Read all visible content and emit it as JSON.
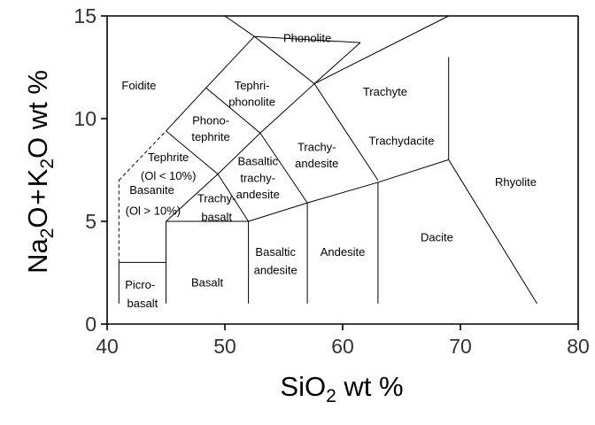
{
  "chart_data": {
    "type": "diagram",
    "xlabel": {
      "main": "SiO",
      "sub": "2",
      "rest": " wt %"
    },
    "ylabel": {
      "p1": "Na",
      "s1": "2",
      "p2": "O",
      "p3": "+",
      "p4": "K",
      "s2": "2",
      "p5": "O wt %"
    },
    "xlim": [
      40,
      80
    ],
    "ylim": [
      0,
      15
    ],
    "xticks": [
      40,
      50,
      60,
      70,
      80
    ],
    "yticks": [
      0,
      5,
      10,
      15
    ],
    "grid": false,
    "boundaries": [
      {
        "id": "basalt-left",
        "points": [
          [
            45,
            1
          ],
          [
            45,
            5
          ]
        ]
      },
      {
        "id": "picrobasalt-top",
        "points": [
          [
            41,
            3
          ],
          [
            45,
            3
          ]
        ]
      },
      {
        "id": "picrobasalt-left",
        "points": [
          [
            41,
            1
          ],
          [
            41,
            3
          ]
        ]
      },
      {
        "id": "basanite-left",
        "points": [
          [
            41,
            3
          ],
          [
            41,
            7
          ]
        ],
        "dashed": true
      },
      {
        "id": "foidite-edge-dashed",
        "points": [
          [
            41,
            7
          ],
          [
            45,
            9.4
          ]
        ],
        "dashed": true
      },
      {
        "id": "basalt-top",
        "points": [
          [
            45,
            5
          ],
          [
            52,
            5
          ]
        ]
      },
      {
        "id": "basalt-right",
        "points": [
          [
            52,
            1
          ],
          [
            52,
            5
          ]
        ]
      },
      {
        "id": "basaltic-andesite-right",
        "points": [
          [
            57,
            1
          ],
          [
            57,
            5.9
          ]
        ]
      },
      {
        "id": "andesite-right",
        "points": [
          [
            63,
            1
          ],
          [
            63,
            6.9
          ]
        ]
      },
      {
        "id": "upper-bound",
        "points": [
          [
            52,
            5
          ],
          [
            57,
            5.9
          ],
          [
            63,
            6.9
          ],
          [
            69,
            8
          ]
        ]
      },
      {
        "id": "rhyolite-left",
        "points": [
          [
            69,
            8
          ],
          [
            69,
            13
          ]
        ]
      },
      {
        "id": "rhyolite-base",
        "points": [
          [
            69,
            8
          ],
          [
            76.5,
            1
          ]
        ]
      },
      {
        "id": "trachybasalt-left",
        "points": [
          [
            45,
            5
          ],
          [
            49.4,
            7.3
          ]
        ]
      },
      {
        "id": "foidite-edge",
        "points": [
          [
            45,
            9.4
          ],
          [
            48.4,
            11.5
          ],
          [
            52.5,
            14
          ],
          [
            57.6,
            11.7
          ],
          [
            63,
            7
          ]
        ]
      },
      {
        "id": "foidite-top",
        "points": [
          [
            52.5,
            14
          ],
          [
            50,
            15.2
          ]
        ]
      },
      {
        "id": "phonolite-left",
        "points": [
          [
            52.5,
            14
          ],
          [
            61.5,
            13.7
          ]
        ]
      },
      {
        "id": "trachyte-tephriphonolite-split",
        "points": [
          [
            57.6,
            11.7
          ],
          [
            61.5,
            13.7
          ]
        ]
      },
      {
        "id": "phonolite-line",
        "points": [
          [
            57.6,
            11.7
          ],
          [
            69,
            15.5
          ]
        ]
      },
      {
        "id": "phono-tephrite-upper",
        "points": [
          [
            48.4,
            11.5
          ],
          [
            53,
            9.3
          ]
        ]
      },
      {
        "id": "tephrite-upper",
        "points": [
          [
            45,
            9.4
          ],
          [
            49.4,
            7.3
          ]
        ]
      },
      {
        "id": "basaltic-trachy-left",
        "points": [
          [
            49.4,
            7.3
          ],
          [
            52,
            5
          ]
        ]
      },
      {
        "id": "basaltic-trachy-right",
        "points": [
          [
            53,
            9.3
          ],
          [
            57,
            5.9
          ]
        ]
      },
      {
        "id": "phono-right",
        "points": [
          [
            49.4,
            7.3
          ],
          [
            53,
            9.3
          ]
        ]
      },
      {
        "id": "tephriphonolite-right",
        "points": [
          [
            53,
            9.3
          ],
          [
            57.6,
            11.7
          ]
        ]
      }
    ],
    "labels": [
      {
        "text": "Phonolite",
        "x": 57.0,
        "y": 13.9
      },
      {
        "text": "Foidite",
        "x": 42.7,
        "y": 11.6
      },
      {
        "text": "Tephri-",
        "x": 52.3,
        "y": 11.6
      },
      {
        "text": "phonolite",
        "x": 52.3,
        "y": 10.8
      },
      {
        "text": "Trachyte",
        "x": 63.6,
        "y": 11.3
      },
      {
        "text": "Phono-",
        "x": 48.8,
        "y": 9.9
      },
      {
        "text": "tephrite",
        "x": 48.8,
        "y": 9.1
      },
      {
        "text": "Trachydacite",
        "x": 65.0,
        "y": 8.9
      },
      {
        "text": "Tephrite",
        "x": 45.2,
        "y": 8.1
      },
      {
        "text": "(Ol < 10%)",
        "x": 45.2,
        "y": 7.2
      },
      {
        "text": "Trachy-",
        "x": 57.8,
        "y": 8.6
      },
      {
        "text": "andesite",
        "x": 57.8,
        "y": 7.8
      },
      {
        "text": "Basaltic",
        "x": 52.8,
        "y": 7.9
      },
      {
        "text": "trachy-",
        "x": 52.8,
        "y": 7.1
      },
      {
        "text": "andesite",
        "x": 52.8,
        "y": 6.3
      },
      {
        "text": "Rhyolite",
        "x": 74.7,
        "y": 6.9
      },
      {
        "text": "Basanite",
        "x": 43.8,
        "y": 6.5
      },
      {
        "text": "Trachy-",
        "x": 49.3,
        "y": 6.1
      },
      {
        "text": "(Ol > 10%)",
        "x": 43.9,
        "y": 5.5
      },
      {
        "text": "basalt",
        "x": 49.3,
        "y": 5.2
      },
      {
        "text": "Dacite",
        "x": 68.0,
        "y": 4.2
      },
      {
        "text": "Andesite",
        "x": 60.0,
        "y": 3.5
      },
      {
        "text": "Basaltic",
        "x": 54.3,
        "y": 3.5
      },
      {
        "text": "andesite",
        "x": 54.3,
        "y": 2.6
      },
      {
        "text": "Basalt",
        "x": 48.5,
        "y": 2.0
      },
      {
        "text": "Picro-",
        "x": 42.8,
        "y": 1.9
      },
      {
        "text": "basalt",
        "x": 43.0,
        "y": 1.0
      }
    ]
  }
}
